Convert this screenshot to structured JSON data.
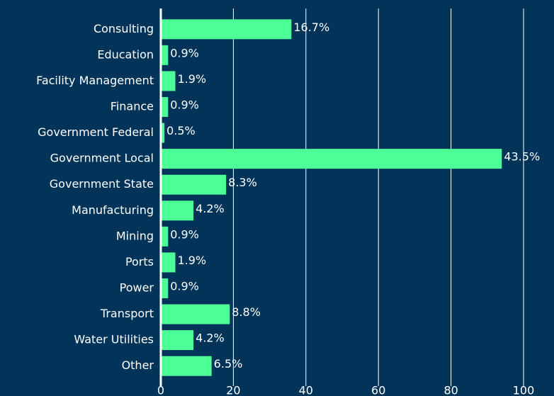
{
  "chart_data": {
    "type": "hbar",
    "categories": [
      "Consulting",
      "Education",
      "Facility Management",
      "Finance",
      "Government Federal",
      "Government Local",
      "Government State",
      "Manufacturing",
      "Mining",
      "Ports",
      "Power",
      "Transport",
      "Water Utilities",
      "Other"
    ],
    "values": [
      36,
      2,
      4,
      2,
      1,
      94,
      18,
      9,
      2,
      4,
      2,
      19,
      9,
      14
    ],
    "value_labels": [
      "16.7%",
      "0.9%",
      "1.9%",
      "0.9%",
      "0.5%",
      "43.5%",
      "8.3%",
      "4.2%",
      "0.9%",
      "1.9%",
      "0.9%",
      "8.8%",
      "4.2%",
      "6.5%"
    ],
    "color": "#4dff97",
    "xlim": [
      0,
      108
    ],
    "xticks": [
      0,
      20,
      40,
      60,
      80,
      100
    ],
    "grid": true
  }
}
